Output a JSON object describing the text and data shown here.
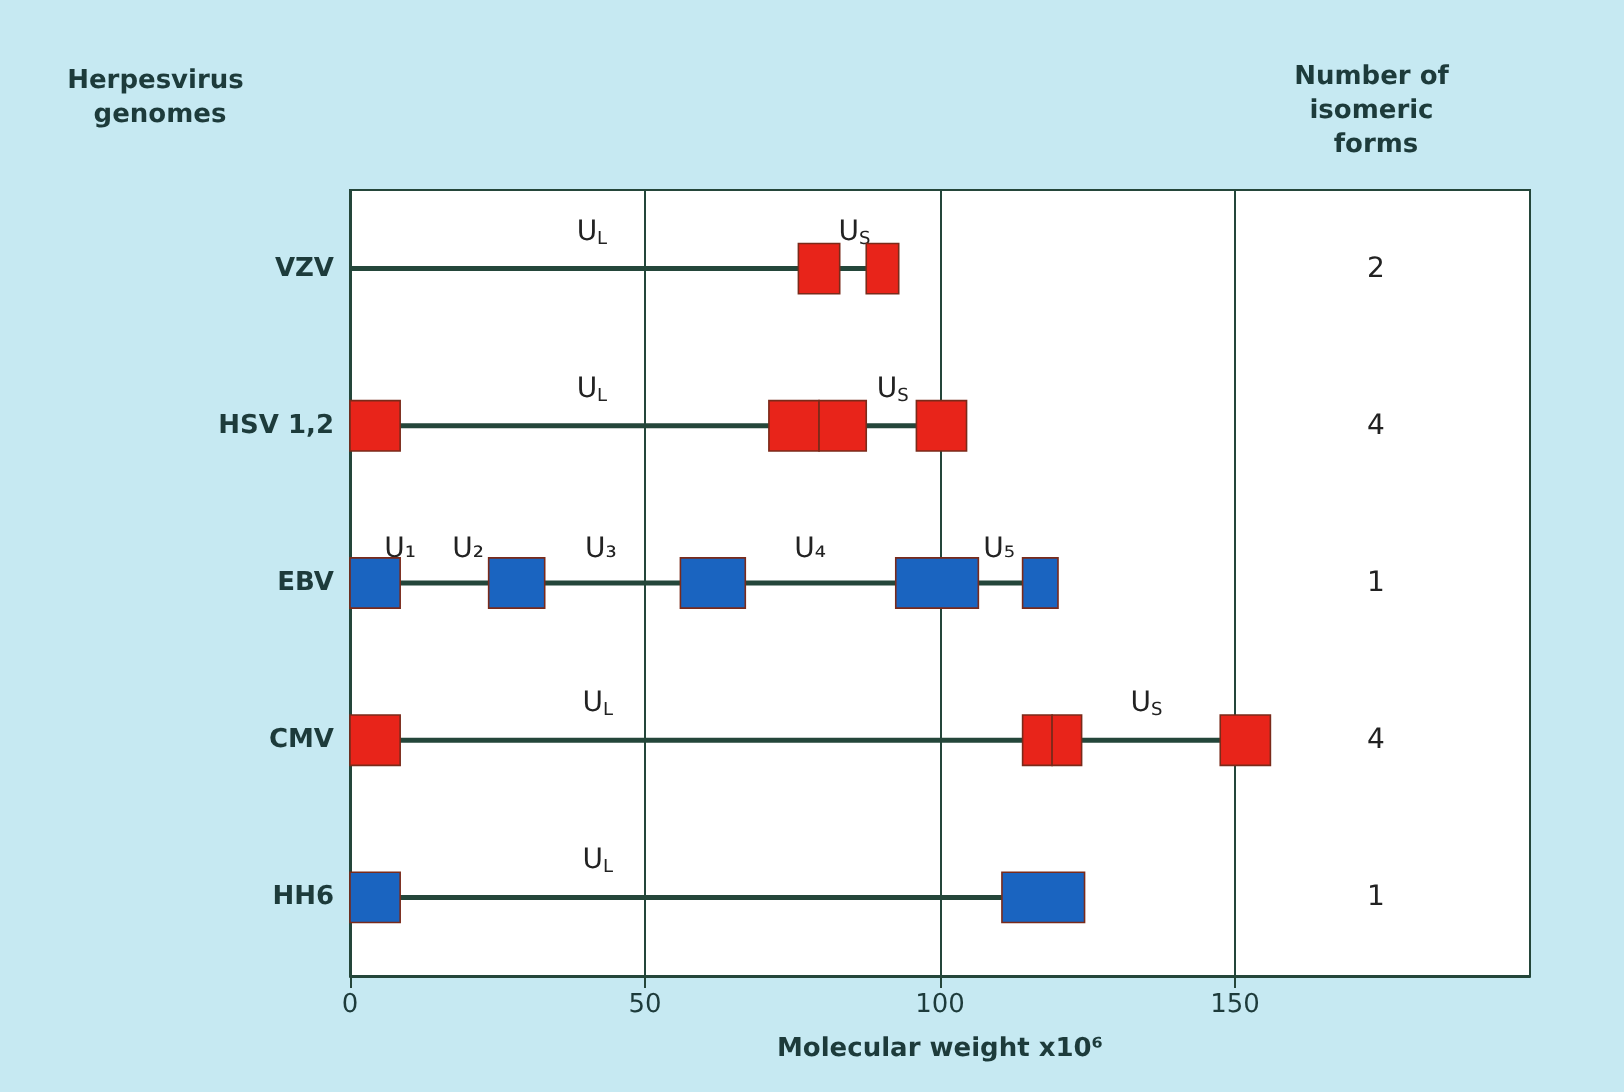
{
  "chart_data": {
    "type": "bar",
    "orientation": "horizontal",
    "ylabel": "Herpesvirus genomes",
    "xlabel": "Molecular weight x10⁶",
    "categories": [
      "VZV",
      "HSV 1,2",
      "EBV",
      "CMV",
      "HH6"
    ],
    "series": [
      {
        "color": "#24463a",
        "values": [
          87.5,
          96,
          114,
          147.5,
          110.5
        ]
      },
      {
        "colors": [
          "#e8241a",
          "#e8241a",
          "#1a64c0",
          "#e8241a",
          "#1a64c0"
        ],
        "base": [
          76,
          0,
          0,
          0,
          0
        ],
        "values": [
          7,
          8.5,
          8.5,
          8.5,
          8.5
        ]
      },
      {
        "colors": [
          "#e8241a",
          "#e8241a",
          "#1a64c0",
          "#e8241a",
          "#1a64c0"
        ],
        "base": [
          87.5,
          71,
          23.5,
          114,
          110.5
        ],
        "values": [
          5.5,
          8.5,
          9.5,
          5,
          14
        ]
      },
      {
        "colors": [
          null,
          "#e8241a",
          "#1a64c0",
          "#e8241a",
          null
        ],
        "base": [
          null,
          79.5,
          56,
          119,
          null
        ],
        "values": [
          null,
          8,
          11,
          5,
          null
        ]
      },
      {
        "colors": [
          null,
          "#e8241a",
          "#1a64c0",
          "#e8241a",
          null
        ],
        "base": [
          null,
          96,
          92.5,
          147.5,
          null
        ],
        "values": [
          null,
          8.5,
          14,
          8.5,
          null
        ]
      },
      {
        "colors": [
          null,
          null,
          "#1a64c0",
          null,
          null
        ],
        "base": [
          null,
          null,
          114,
          null,
          null
        ],
        "values": [
          null,
          null,
          6,
          null,
          null
        ]
      }
    ],
    "xlim": [
      0,
      200
    ],
    "xticks": [
      0,
      50,
      100,
      150
    ],
    "grid": "x",
    "annotations": [
      "Number of isomeric forms",
      "2",
      "4",
      "1",
      "4",
      "1",
      {
        "text": "U$_{L}$",
        "x": 41,
        "y": "VZV"
      },
      {
        "text": "U$_{S}$",
        "x": 85.5,
        "y": "VZV"
      },
      {
        "text": "U$_{L}$",
        "x": 41,
        "y": "HSV 1,2"
      },
      {
        "text": "U$_{S}$",
        "x": 92,
        "y": "HSV 1,2"
      },
      {
        "text": "U₁",
        "x": 8.5,
        "y": "EBV"
      },
      {
        "text": "U₂",
        "x": 20,
        "y": "EBV"
      },
      {
        "text": "U₃",
        "x": 42.5,
        "y": "EBV"
      },
      {
        "text": "U₄",
        "x": 78,
        "y": "EBV"
      },
      {
        "text": "U₅",
        "x": 110,
        "y": "EBV"
      },
      {
        "text": "U$_{L}$",
        "x": 42,
        "y": "CMV"
      },
      {
        "text": "U$_{S}$",
        "x": 135,
        "y": "CMV"
      },
      {
        "text": "U$_{L}$",
        "x": 42,
        "y": "HH6"
      }
    ]
  }
}
